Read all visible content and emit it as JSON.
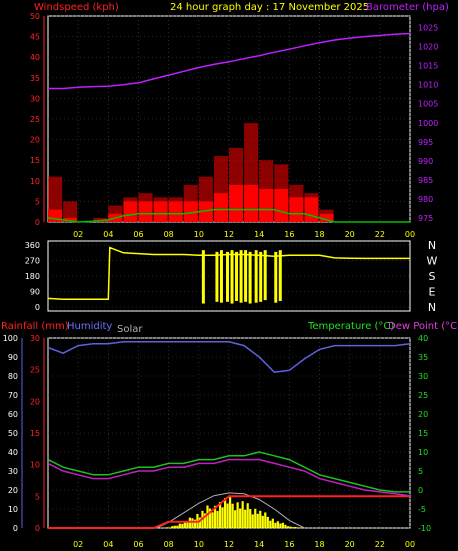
{
  "header": {
    "wind_label": "Windspeed (kph)",
    "title": "24 hour graph day : 17 November 2025",
    "baro_label": "Barometer (hpa)"
  },
  "lower_header": {
    "rain_label": "Rainfall (mm)",
    "humidity_label": "Humidity",
    "solar_label": "Solar",
    "temp_label": "Temperature (°C)",
    "dew_label": "Dew Point (°C)"
  },
  "colors": {
    "wind": "#ff0000",
    "gust": "#ff0000",
    "wind_avg": "#00c000",
    "baro": "#c020ff",
    "direction": "#ffff00",
    "rain": "#ff2020",
    "humidity": "#6060e0",
    "solar": "#ffff00",
    "solar_max": "#b0b0b0",
    "temp": "#20c020",
    "dew": "#c020c0",
    "grid": "#444444",
    "frame": "#ffffff"
  },
  "chart_data": [
    {
      "type": "line",
      "panel": "wind-barometer",
      "x": [
        0,
        1,
        2,
        3,
        4,
        5,
        6,
        7,
        8,
        9,
        10,
        11,
        12,
        13,
        14,
        15,
        16,
        17,
        18,
        19,
        20,
        21,
        22,
        23,
        24
      ],
      "x_ticks": [
        "02",
        "04",
        "06",
        "08",
        "10",
        "12",
        "14",
        "16",
        "18",
        "20",
        "22",
        "00"
      ],
      "y_left_ticks": [
        "0",
        "5",
        "10",
        "15",
        "20",
        "25",
        "30",
        "35",
        "40",
        "45",
        "50"
      ],
      "y_left_lim": [
        0,
        50
      ],
      "y_right_ticks": [
        "975",
        "980",
        "985",
        "990",
        "995",
        "1000",
        "1005",
        "1010",
        "1015",
        "1020",
        "1025"
      ],
      "y_right_lim": [
        974,
        1028
      ],
      "series": [
        {
          "name": "Windspeed (kph)",
          "axis": "left",
          "values": [
            3,
            1,
            0,
            0.5,
            2,
            5,
            5,
            5,
            5,
            5,
            5,
            7,
            9,
            9,
            8,
            8,
            6,
            6,
            2,
            0,
            0,
            0,
            0,
            0,
            0
          ]
        },
        {
          "name": "Gust",
          "axis": "left",
          "values": [
            11,
            5,
            0,
            1,
            4,
            6,
            7,
            6,
            6,
            9,
            11,
            16,
            18,
            24,
            15,
            14,
            9,
            7,
            3,
            0,
            0,
            0,
            0,
            0,
            0
          ]
        },
        {
          "name": "Average",
          "axis": "left",
          "values": [
            1,
            0.5,
            0,
            0.2,
            0.5,
            1.5,
            2,
            2,
            2,
            2,
            2.5,
            3,
            3,
            3,
            3,
            3,
            2,
            2,
            1,
            0,
            0,
            0,
            0,
            0,
            0
          ]
        },
        {
          "name": "Barometer (hpa)",
          "axis": "right",
          "values": [
            1009,
            1009,
            1009.3,
            1009.5,
            1009.6,
            1010,
            1010.5,
            1011.5,
            1012.5,
            1013.5,
            1014.5,
            1015.3,
            1016,
            1016.8,
            1017.6,
            1018.5,
            1019.3,
            1020.2,
            1021,
            1021.7,
            1022.2,
            1022.6,
            1022.9,
            1023.2,
            1023.4
          ]
        }
      ]
    },
    {
      "type": "line",
      "panel": "wind-direction",
      "x": [
        0,
        1,
        2,
        3,
        4,
        4.1,
        5,
        6,
        7,
        8,
        9,
        10,
        11,
        12,
        13,
        14,
        15,
        16,
        17,
        18,
        19,
        20,
        21,
        22,
        23,
        24
      ],
      "y_ticks": [
        "0",
        "90",
        "180",
        "270",
        "360"
      ],
      "y_lim": [
        0,
        360
      ],
      "compass": [
        "N",
        "W",
        "S",
        "E",
        "N"
      ],
      "values": [
        50,
        45,
        45,
        45,
        45,
        345,
        315,
        310,
        305,
        305,
        305,
        300,
        300,
        305,
        305,
        300,
        295,
        300,
        300,
        300,
        285,
        283,
        282,
        282,
        282,
        282
      ],
      "spikes": [
        [
          10.3,
          20,
          330
        ],
        [
          11.2,
          30,
          320
        ],
        [
          11.5,
          25,
          330
        ],
        [
          11.9,
          30,
          320
        ],
        [
          12.2,
          20,
          330
        ],
        [
          12.5,
          35,
          320
        ],
        [
          12.8,
          25,
          330
        ],
        [
          13.1,
          30,
          330
        ],
        [
          13.4,
          20,
          320
        ],
        [
          13.8,
          25,
          330
        ],
        [
          14.1,
          30,
          320
        ],
        [
          14.4,
          40,
          330
        ],
        [
          15.1,
          25,
          320
        ],
        [
          15.4,
          35,
          330
        ]
      ]
    },
    {
      "type": "line",
      "panel": "temperature-humidity-rain-solar",
      "x": [
        0,
        1,
        2,
        3,
        4,
        5,
        6,
        7,
        8,
        9,
        10,
        11,
        12,
        13,
        14,
        15,
        16,
        17,
        18,
        19,
        20,
        21,
        22,
        23,
        24
      ],
      "x_ticks": [
        "02",
        "04",
        "06",
        "08",
        "10",
        "12",
        "14",
        "16",
        "18",
        "20",
        "22",
        "00"
      ],
      "humidity_ticks": [
        "0",
        "10",
        "20",
        "30",
        "40",
        "50",
        "60",
        "70",
        "80",
        "90",
        "100"
      ],
      "rain_ticks": [
        "0",
        "5",
        "10",
        "15",
        "20",
        "25",
        "30"
      ],
      "temp_ticks": [
        "-10",
        "-5",
        "0",
        "5",
        "10",
        "15",
        "20",
        "25",
        "30",
        "35",
        "40"
      ],
      "series": [
        {
          "name": "Humidity",
          "axis": "humidity",
          "range": [
            0,
            100
          ],
          "values": [
            95,
            92,
            96,
            97,
            97,
            98,
            98,
            98,
            98,
            98,
            98,
            98,
            98,
            96,
            90,
            82,
            83,
            89,
            94,
            96,
            96,
            96,
            96,
            96,
            97
          ]
        },
        {
          "name": "Temperature (°C)",
          "axis": "temp",
          "range": [
            -10,
            40
          ],
          "values": [
            8,
            6,
            5,
            4,
            4,
            5,
            6,
            6,
            7,
            7,
            8,
            8,
            9,
            9,
            10,
            9,
            8,
            6,
            4,
            3,
            2,
            1,
            0,
            -0.5,
            -0.5
          ]
        },
        {
          "name": "Dew Point (°C)",
          "axis": "temp",
          "range": [
            -10,
            40
          ],
          "values": [
            7,
            5,
            4,
            3,
            3,
            4,
            5,
            5,
            6,
            6,
            7,
            7,
            8,
            8,
            8,
            7,
            6,
            5,
            3,
            2,
            1,
            0,
            -0.5,
            -1,
            -1.5
          ]
        },
        {
          "name": "Rainfall (mm)",
          "axis": "rain",
          "range": [
            0,
            30
          ],
          "values": [
            0,
            0,
            0,
            0,
            0,
            0,
            0,
            0,
            1,
            1,
            1,
            3,
            5,
            5,
            5,
            5,
            5,
            5,
            5,
            5,
            5,
            5,
            5,
            5,
            5
          ]
        },
        {
          "name": "Solar",
          "axis": "humidity",
          "range": [
            0,
            100
          ],
          "values": [
            0,
            0,
            0,
            0,
            0,
            0,
            0,
            0,
            0.5,
            4,
            10,
            16,
            18,
            15,
            11,
            5,
            1,
            0,
            0,
            0,
            0,
            0,
            0,
            0,
            0
          ]
        }
      ],
      "solar_max": {
        "x": [
          7.2,
          8,
          9,
          10,
          11,
          12,
          13,
          14,
          15,
          16,
          17
        ],
        "values": [
          0,
          3,
          8,
          13,
          17,
          18.5,
          18,
          15,
          10,
          4,
          0
        ]
      }
    }
  ]
}
